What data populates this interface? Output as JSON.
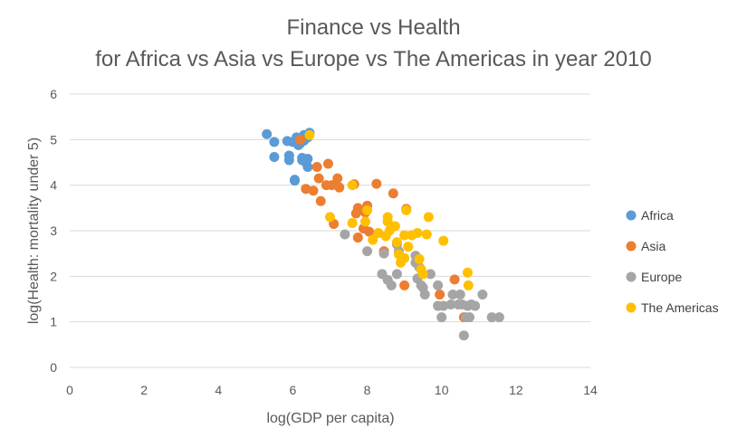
{
  "chart_data": {
    "type": "scatter",
    "title": "Finance vs Health",
    "subtitle": "for Africa vs Asia vs Europe vs The Americas in year 2010",
    "xlabel": "log(GDP per capita)",
    "ylabel": "log(Health: mortality under 5)",
    "xlim": [
      0,
      14
    ],
    "ylim": [
      0,
      6
    ],
    "xticks": [
      0,
      2,
      4,
      6,
      8,
      10,
      12,
      14
    ],
    "yticks": [
      0,
      1,
      2,
      3,
      4,
      5,
      6
    ],
    "grid": "horizontal",
    "legend_position": "right",
    "series": [
      {
        "name": "Africa",
        "color": "#5b9bd5",
        "points": [
          [
            5.3,
            5.12
          ],
          [
            5.5,
            4.95
          ],
          [
            5.5,
            4.62
          ],
          [
            5.85,
            4.97
          ],
          [
            5.9,
            4.65
          ],
          [
            5.9,
            4.55
          ],
          [
            6.0,
            4.95
          ],
          [
            6.05,
            4.12
          ],
          [
            6.05,
            4.1
          ],
          [
            6.1,
            5.05
          ],
          [
            6.15,
            4.88
          ],
          [
            6.2,
            4.92
          ],
          [
            6.25,
            4.6
          ],
          [
            6.25,
            4.55
          ],
          [
            6.3,
            5.1
          ],
          [
            6.35,
            4.5
          ],
          [
            6.4,
            4.4
          ],
          [
            6.4,
            4.58
          ],
          [
            6.4,
            5.05
          ],
          [
            6.45,
            5.15
          ],
          [
            6.3,
            4.98
          ]
        ]
      },
      {
        "name": "Asia",
        "color": "#ed7d31",
        "points": [
          [
            6.2,
            5.0
          ],
          [
            6.35,
            3.92
          ],
          [
            6.55,
            3.88
          ],
          [
            6.65,
            4.4
          ],
          [
            6.7,
            4.15
          ],
          [
            6.75,
            3.65
          ],
          [
            6.9,
            4.0
          ],
          [
            6.95,
            4.47
          ],
          [
            7.05,
            4.0
          ],
          [
            7.1,
            3.15
          ],
          [
            7.2,
            4.15
          ],
          [
            7.25,
            3.95
          ],
          [
            7.65,
            4.02
          ],
          [
            7.7,
            3.38
          ],
          [
            7.75,
            3.5
          ],
          [
            7.75,
            2.85
          ],
          [
            7.9,
            3.05
          ],
          [
            7.95,
            3.4
          ],
          [
            8.0,
            3.55
          ],
          [
            8.05,
            2.98
          ],
          [
            8.25,
            4.03
          ],
          [
            8.45,
            2.55
          ],
          [
            8.7,
            3.82
          ],
          [
            9.0,
            1.8
          ],
          [
            9.05,
            3.48
          ],
          [
            9.95,
            1.6
          ],
          [
            10.35,
            1.93
          ],
          [
            10.6,
            1.1
          ]
        ]
      },
      {
        "name": "Europe",
        "color": "#a5a5a5",
        "points": [
          [
            7.4,
            2.92
          ],
          [
            8.0,
            2.55
          ],
          [
            8.4,
            2.05
          ],
          [
            8.45,
            2.5
          ],
          [
            8.55,
            1.92
          ],
          [
            8.65,
            1.8
          ],
          [
            8.8,
            2.05
          ],
          [
            8.8,
            2.7
          ],
          [
            8.85,
            2.55
          ],
          [
            9.3,
            2.45
          ],
          [
            9.3,
            2.3
          ],
          [
            9.35,
            1.95
          ],
          [
            9.4,
            2.2
          ],
          [
            9.45,
            1.8
          ],
          [
            9.5,
            1.75
          ],
          [
            9.55,
            1.6
          ],
          [
            9.7,
            2.05
          ],
          [
            9.9,
            1.8
          ],
          [
            9.9,
            1.35
          ],
          [
            10.0,
            1.1
          ],
          [
            10.05,
            1.35
          ],
          [
            10.25,
            1.38
          ],
          [
            10.3,
            1.6
          ],
          [
            10.45,
            1.38
          ],
          [
            10.5,
            1.6
          ],
          [
            10.55,
            1.38
          ],
          [
            10.6,
            0.7
          ],
          [
            10.65,
            1.1
          ],
          [
            10.7,
            1.35
          ],
          [
            10.75,
            1.1
          ],
          [
            10.8,
            1.38
          ],
          [
            10.9,
            1.35
          ],
          [
            11.1,
            1.6
          ],
          [
            11.35,
            1.1
          ],
          [
            11.55,
            1.1
          ]
        ]
      },
      {
        "name": "The Americas",
        "color": "#ffc000",
        "points": [
          [
            6.45,
            5.1
          ],
          [
            7.0,
            3.3
          ],
          [
            7.6,
            4.0
          ],
          [
            7.6,
            3.17
          ],
          [
            7.95,
            3.2
          ],
          [
            8.0,
            3.45
          ],
          [
            8.15,
            2.8
          ],
          [
            8.3,
            2.95
          ],
          [
            8.5,
            2.88
          ],
          [
            8.55,
            3.3
          ],
          [
            8.55,
            3.2
          ],
          [
            8.6,
            3.0
          ],
          [
            8.75,
            3.1
          ],
          [
            8.8,
            2.75
          ],
          [
            8.85,
            2.48
          ],
          [
            8.9,
            2.3
          ],
          [
            9.0,
            2.4
          ],
          [
            9.0,
            2.9
          ],
          [
            9.05,
            3.45
          ],
          [
            9.1,
            2.65
          ],
          [
            9.2,
            2.9
          ],
          [
            9.35,
            2.95
          ],
          [
            9.4,
            2.38
          ],
          [
            9.45,
            2.15
          ],
          [
            9.5,
            2.05
          ],
          [
            9.6,
            2.92
          ],
          [
            9.65,
            3.3
          ],
          [
            10.05,
            2.78
          ],
          [
            10.7,
            2.08
          ],
          [
            10.72,
            1.8
          ]
        ]
      }
    ]
  }
}
